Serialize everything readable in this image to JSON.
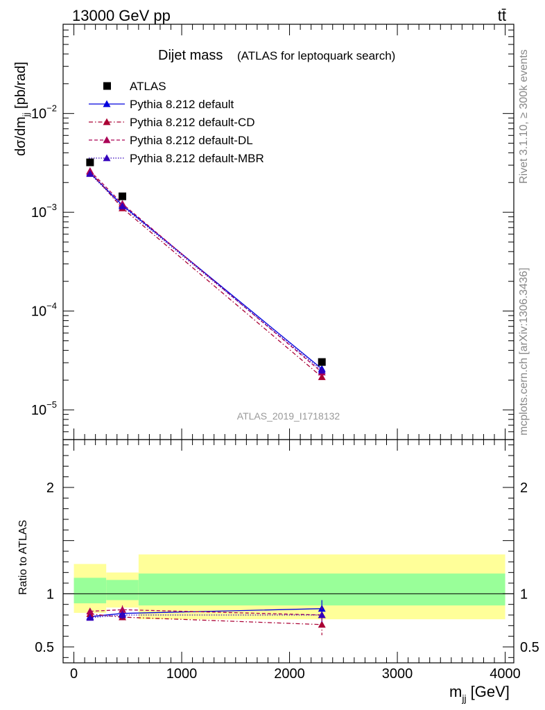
{
  "header": {
    "left": "13000 GeV pp",
    "right": "tt̄"
  },
  "side_labels": {
    "rivet": "Rivet 3.1.10, ≥ 300k events",
    "mcplots": "mcplots.cern.ch [arXiv:1306.3436]"
  },
  "colors": {
    "data": "#000000",
    "default": "#0000dd",
    "cd": "#aa0033",
    "dl": "#aa0055",
    "mbr": "#3300bb",
    "band_outer": "#ffff99",
    "band_inner": "#99ff99",
    "watermark": "#999999"
  },
  "chart_data": {
    "type": "line",
    "title": "Dijet mass",
    "subtitle": "(ATLAS for leptoquark search)",
    "watermark": "ATLAS_2019_I1718132",
    "xlabel": "m_jj [GeV]",
    "ylabel": "dσ/dm_jj [pb/rad]",
    "ratio_ylabel": "Ratio to ATLAS",
    "x_scale": "linear",
    "y_scale": "log",
    "xlim": [
      -100,
      4080
    ],
    "ylim": [
      5e-06,
      0.08
    ],
    "ratio_ylim": [
      0.35,
      2.45
    ],
    "x_ticks": [
      0,
      1000,
      2000,
      3000,
      4000
    ],
    "x_tick_labels": [
      "0",
      "1000",
      "2000",
      "3000",
      "4000"
    ],
    "y_ticks": [
      0.01,
      0.001,
      0.0001,
      1e-05
    ],
    "ratio_ticks": [
      0.5,
      1,
      2
    ],
    "ratio_tick_labels": [
      "0.5",
      "1",
      "2"
    ],
    "legend_position": "top-left",
    "data": {
      "name": "ATLAS",
      "x": [
        150,
        450,
        2300
      ],
      "y": [
        0.0032,
        0.00145,
        3.05e-05
      ]
    },
    "series": [
      {
        "name": "Pythia 8.212 default",
        "style": "solid",
        "x": [
          150,
          450,
          2300
        ],
        "y": [
          0.0025,
          0.00118,
          2.6e-05
        ],
        "ratio": [
          0.785,
          0.815,
          0.86
        ],
        "ratio_err": [
          0.03,
          0.03,
          0.08
        ]
      },
      {
        "name": "Pythia 8.212 default-CD",
        "style": "dashdot",
        "x": [
          150,
          450,
          2300
        ],
        "y": [
          0.00258,
          0.0011,
          2.15e-05
        ],
        "ratio": [
          0.81,
          0.78,
          0.71
        ],
        "ratio_err": [
          0.03,
          0.04,
          0.1
        ]
      },
      {
        "name": "Pythia 8.212 default-DL",
        "style": "dashed",
        "x": [
          150,
          450,
          2300
        ],
        "y": [
          0.00262,
          0.00122,
          2.4e-05
        ],
        "ratio": [
          0.835,
          0.85,
          0.8
        ],
        "ratio_err": [
          0.03,
          0.04,
          0.08
        ]
      },
      {
        "name": "Pythia 8.212 default-MBR",
        "style": "dotted",
        "x": [
          150,
          450,
          2300
        ],
        "y": [
          0.00245,
          0.00115,
          2.5e-05
        ],
        "ratio": [
          0.775,
          0.8,
          0.8
        ],
        "ratio_err": [
          0.03,
          0.04,
          0.08
        ]
      }
    ],
    "bands": [
      {
        "x0": 0,
        "x1": 300,
        "inner": [
          0.91,
          1.15
        ],
        "outer": [
          0.82,
          1.28
        ]
      },
      {
        "x0": 300,
        "x1": 600,
        "inner": [
          0.94,
          1.13
        ],
        "outer": [
          0.87,
          1.2
        ]
      },
      {
        "x0": 600,
        "x1": 4000,
        "inner": [
          0.89,
          1.19
        ],
        "outer": [
          0.76,
          1.37
        ]
      }
    ]
  }
}
